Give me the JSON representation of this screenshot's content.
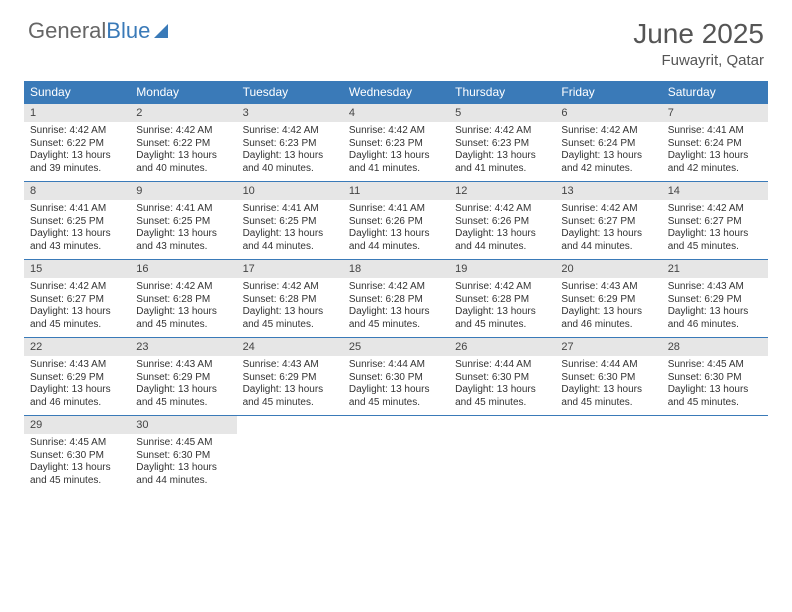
{
  "brand": {
    "part1": "General",
    "part2": "Blue"
  },
  "title": "June 2025",
  "location": "Fuwayrit, Qatar",
  "colors": {
    "header_bg": "#3a7ab8",
    "header_text": "#ffffff",
    "daynum_bg": "#e6e6e6",
    "body_text": "#333333",
    "page_bg": "#ffffff"
  },
  "dayNames": [
    "Sunday",
    "Monday",
    "Tuesday",
    "Wednesday",
    "Thursday",
    "Friday",
    "Saturday"
  ],
  "days": [
    {
      "n": 1,
      "sr": "4:42 AM",
      "ss": "6:22 PM",
      "dl": "13 hours and 39 minutes."
    },
    {
      "n": 2,
      "sr": "4:42 AM",
      "ss": "6:22 PM",
      "dl": "13 hours and 40 minutes."
    },
    {
      "n": 3,
      "sr": "4:42 AM",
      "ss": "6:23 PM",
      "dl": "13 hours and 40 minutes."
    },
    {
      "n": 4,
      "sr": "4:42 AM",
      "ss": "6:23 PM",
      "dl": "13 hours and 41 minutes."
    },
    {
      "n": 5,
      "sr": "4:42 AM",
      "ss": "6:23 PM",
      "dl": "13 hours and 41 minutes."
    },
    {
      "n": 6,
      "sr": "4:42 AM",
      "ss": "6:24 PM",
      "dl": "13 hours and 42 minutes."
    },
    {
      "n": 7,
      "sr": "4:41 AM",
      "ss": "6:24 PM",
      "dl": "13 hours and 42 minutes."
    },
    {
      "n": 8,
      "sr": "4:41 AM",
      "ss": "6:25 PM",
      "dl": "13 hours and 43 minutes."
    },
    {
      "n": 9,
      "sr": "4:41 AM",
      "ss": "6:25 PM",
      "dl": "13 hours and 43 minutes."
    },
    {
      "n": 10,
      "sr": "4:41 AM",
      "ss": "6:25 PM",
      "dl": "13 hours and 44 minutes."
    },
    {
      "n": 11,
      "sr": "4:41 AM",
      "ss": "6:26 PM",
      "dl": "13 hours and 44 minutes."
    },
    {
      "n": 12,
      "sr": "4:42 AM",
      "ss": "6:26 PM",
      "dl": "13 hours and 44 minutes."
    },
    {
      "n": 13,
      "sr": "4:42 AM",
      "ss": "6:27 PM",
      "dl": "13 hours and 44 minutes."
    },
    {
      "n": 14,
      "sr": "4:42 AM",
      "ss": "6:27 PM",
      "dl": "13 hours and 45 minutes."
    },
    {
      "n": 15,
      "sr": "4:42 AM",
      "ss": "6:27 PM",
      "dl": "13 hours and 45 minutes."
    },
    {
      "n": 16,
      "sr": "4:42 AM",
      "ss": "6:28 PM",
      "dl": "13 hours and 45 minutes."
    },
    {
      "n": 17,
      "sr": "4:42 AM",
      "ss": "6:28 PM",
      "dl": "13 hours and 45 minutes."
    },
    {
      "n": 18,
      "sr": "4:42 AM",
      "ss": "6:28 PM",
      "dl": "13 hours and 45 minutes."
    },
    {
      "n": 19,
      "sr": "4:42 AM",
      "ss": "6:28 PM",
      "dl": "13 hours and 45 minutes."
    },
    {
      "n": 20,
      "sr": "4:43 AM",
      "ss": "6:29 PM",
      "dl": "13 hours and 46 minutes."
    },
    {
      "n": 21,
      "sr": "4:43 AM",
      "ss": "6:29 PM",
      "dl": "13 hours and 46 minutes."
    },
    {
      "n": 22,
      "sr": "4:43 AM",
      "ss": "6:29 PM",
      "dl": "13 hours and 46 minutes."
    },
    {
      "n": 23,
      "sr": "4:43 AM",
      "ss": "6:29 PM",
      "dl": "13 hours and 45 minutes."
    },
    {
      "n": 24,
      "sr": "4:43 AM",
      "ss": "6:29 PM",
      "dl": "13 hours and 45 minutes."
    },
    {
      "n": 25,
      "sr": "4:44 AM",
      "ss": "6:30 PM",
      "dl": "13 hours and 45 minutes."
    },
    {
      "n": 26,
      "sr": "4:44 AM",
      "ss": "6:30 PM",
      "dl": "13 hours and 45 minutes."
    },
    {
      "n": 27,
      "sr": "4:44 AM",
      "ss": "6:30 PM",
      "dl": "13 hours and 45 minutes."
    },
    {
      "n": 28,
      "sr": "4:45 AM",
      "ss": "6:30 PM",
      "dl": "13 hours and 45 minutes."
    },
    {
      "n": 29,
      "sr": "4:45 AM",
      "ss": "6:30 PM",
      "dl": "13 hours and 45 minutes."
    },
    {
      "n": 30,
      "sr": "4:45 AM",
      "ss": "6:30 PM",
      "dl": "13 hours and 44 minutes."
    }
  ],
  "labels": {
    "sunrise": "Sunrise:",
    "sunset": "Sunset:",
    "daylight": "Daylight:"
  },
  "startWeekday": 0,
  "columns": 7
}
